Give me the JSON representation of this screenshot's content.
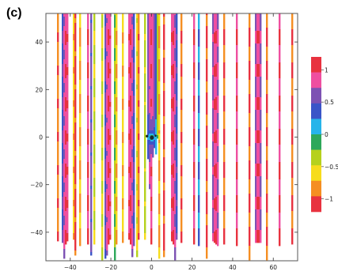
{
  "chart_data": {
    "type": "heatmap",
    "panel_label": "(c)",
    "title": "",
    "xlabel": "",
    "ylabel": "",
    "xlim": [
      -52,
      72
    ],
    "ylim": [
      -52,
      52
    ],
    "x_ticks": [
      -40,
      -20,
      0,
      20,
      40,
      60
    ],
    "x_tick_labels": [
      "−40",
      "−20",
      "0",
      "20",
      "40",
      "60"
    ],
    "y_ticks": [
      -40,
      -20,
      0,
      20,
      40
    ],
    "y_tick_labels": [
      "−40",
      "−20",
      "0",
      "20",
      "40"
    ],
    "stripe_period": 10.5,
    "stripe_axis": "x",
    "singularity_center": [
      0,
      0
    ],
    "field_range": [
      -1.2,
      1.2
    ],
    "colorbar": {
      "levels": [
        {
          "value": 1.15,
          "color": "#e8323f"
        },
        {
          "value": 0.9,
          "color": "#ef4fa0"
        },
        {
          "value": 0.55,
          "color": "#7d52b3"
        },
        {
          "value": 0.25,
          "color": "#3a55c8"
        },
        {
          "value": 0.05,
          "color": "#26b4ea"
        },
        {
          "value": -0.2,
          "color": "#2ea85a"
        },
        {
          "value": -0.45,
          "color": "#b6d11d"
        },
        {
          "value": -0.7,
          "color": "#f7dc1c"
        },
        {
          "value": -0.95,
          "color": "#f58e22"
        },
        {
          "value": -1.2,
          "color": "#e8323f"
        }
      ],
      "tick_values": [
        1,
        0.5,
        0,
        -0.5,
        -1
      ],
      "tick_labels": [
        "1",
        "0.5",
        "0",
        "−0.5",
        "−1"
      ]
    }
  },
  "colors": {
    "frame": "#555555",
    "dots": "#1b2a2a"
  }
}
